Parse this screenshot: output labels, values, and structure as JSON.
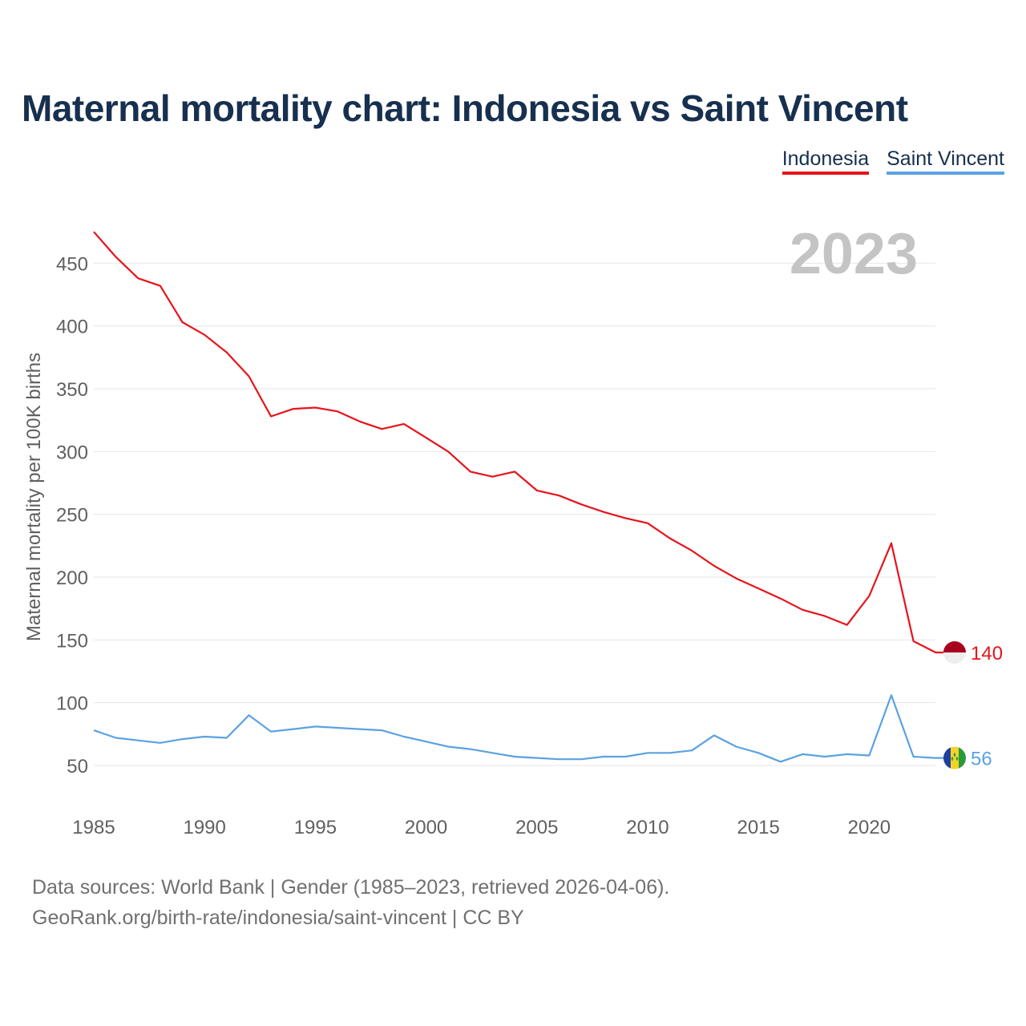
{
  "title": "Maternal mortality chart: Indonesia vs Saint Vincent",
  "legend": {
    "indonesia": "Indonesia",
    "saint_vincent": "Saint Vincent"
  },
  "year_watermark": "2023",
  "footer": {
    "line1": "Data sources: World Bank | Gender (1985–2023, retrieved 2026-04-06).",
    "line2": "GeoRank.org/birth-rate/indonesia/saint-vincent | CC BY"
  },
  "colors": {
    "indonesia": "#e8131b",
    "saint_vincent": "#5aa2e2",
    "grid": "#e6e6e6",
    "axis_text": "#606060",
    "watermark": "#c4c4c4"
  },
  "chart_data": {
    "type": "line",
    "title": "Maternal mortality chart: Indonesia vs Saint Vincent",
    "xlabel": "",
    "ylabel": "Maternal mortality per 100K births",
    "xlim": [
      1985,
      2023
    ],
    "ylim": [
      30,
      480
    ],
    "x_ticks": [
      1985,
      1990,
      1995,
      2000,
      2005,
      2010,
      2015,
      2020
    ],
    "y_ticks": [
      50,
      100,
      150,
      200,
      250,
      300,
      350,
      400,
      450
    ],
    "grid": true,
    "legend_position": "top-right",
    "x": [
      1985,
      1986,
      1987,
      1988,
      1989,
      1990,
      1991,
      1992,
      1993,
      1994,
      1995,
      1996,
      1997,
      1998,
      1999,
      2000,
      2001,
      2002,
      2003,
      2004,
      2005,
      2006,
      2007,
      2008,
      2009,
      2010,
      2011,
      2012,
      2013,
      2014,
      2015,
      2016,
      2017,
      2018,
      2019,
      2020,
      2021,
      2022,
      2023
    ],
    "series": [
      {
        "name": "Indonesia",
        "end_label": "140",
        "values": [
          475,
          455,
          438,
          432,
          403,
          393,
          379,
          360,
          328,
          334,
          335,
          332,
          324,
          318,
          322,
          311,
          300,
          284,
          280,
          284,
          269,
          265,
          258,
          252,
          247,
          243,
          231,
          221,
          209,
          199,
          191,
          183,
          174,
          169,
          162,
          185,
          227,
          149,
          140
        ]
      },
      {
        "name": "Saint Vincent",
        "end_label": "56",
        "values": [
          78,
          72,
          70,
          68,
          71,
          73,
          72,
          90,
          77,
          79,
          81,
          80,
          79,
          78,
          73,
          69,
          65,
          63,
          60,
          57,
          56,
          55,
          55,
          57,
          57,
          60,
          60,
          62,
          74,
          65,
          60,
          53,
          59,
          57,
          59,
          58,
          106,
          57,
          56
        ]
      }
    ]
  }
}
